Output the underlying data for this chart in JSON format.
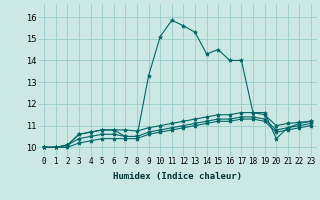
{
  "xlabel": "Humidex (Indice chaleur)",
  "ylabel": "",
  "bg_color": "#cce8e4",
  "grid_color": "#99cccc",
  "line_color": "#006666",
  "xlim": [
    -0.5,
    23.5
  ],
  "ylim": [
    9.6,
    16.6
  ],
  "xticks": [
    0,
    1,
    2,
    3,
    4,
    5,
    6,
    7,
    8,
    9,
    10,
    11,
    12,
    13,
    14,
    15,
    16,
    17,
    18,
    19,
    20,
    21,
    22,
    23
  ],
  "yticks": [
    10,
    11,
    12,
    13,
    14,
    15,
    16
  ],
  "series": [
    [
      10.0,
      10.0,
      10.1,
      10.6,
      10.7,
      10.8,
      10.8,
      10.5,
      10.5,
      13.3,
      15.1,
      15.85,
      15.6,
      15.3,
      14.3,
      14.5,
      14.0,
      14.0,
      11.6,
      11.6,
      10.4,
      10.9,
      11.1,
      11.2
    ],
    [
      10.0,
      10.0,
      10.1,
      10.6,
      10.7,
      10.8,
      10.8,
      10.8,
      10.75,
      10.9,
      11.0,
      11.1,
      11.2,
      11.3,
      11.4,
      11.5,
      11.5,
      11.6,
      11.6,
      11.5,
      11.0,
      11.1,
      11.15,
      11.2
    ],
    [
      10.0,
      10.0,
      10.1,
      10.4,
      10.5,
      10.6,
      10.6,
      10.5,
      10.5,
      10.7,
      10.8,
      10.9,
      11.0,
      11.1,
      11.2,
      11.3,
      11.3,
      11.4,
      11.4,
      11.3,
      10.8,
      10.9,
      11.0,
      11.1
    ],
    [
      10.0,
      10.0,
      10.0,
      10.2,
      10.3,
      10.4,
      10.4,
      10.4,
      10.4,
      10.6,
      10.7,
      10.8,
      10.9,
      11.0,
      11.1,
      11.2,
      11.2,
      11.3,
      11.3,
      11.2,
      10.7,
      10.8,
      10.9,
      11.0
    ]
  ]
}
